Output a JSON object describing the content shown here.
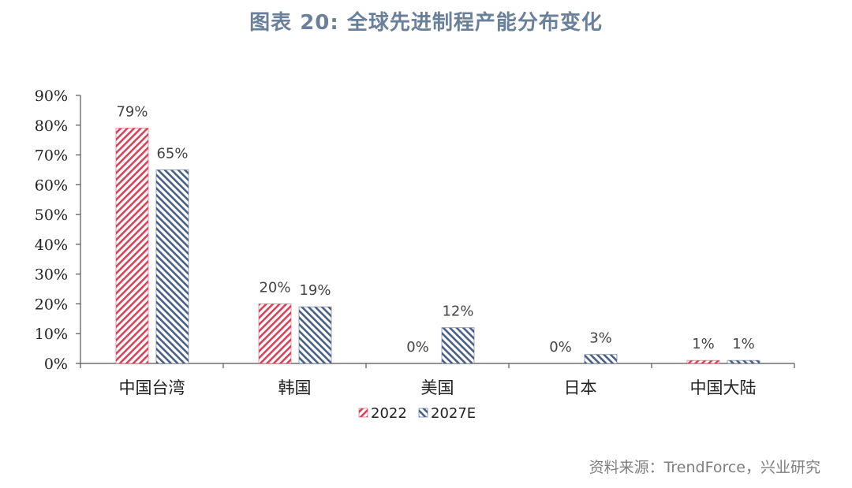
{
  "header": {
    "title": "图表 20: 全球先进制程产能分布变化"
  },
  "footer": {
    "source": "资料来源：TrendForce，兴业研究"
  },
  "colors": {
    "series_2022": "#d9435a",
    "series_2027E": "#4a5f85",
    "title": "#6a7f9a",
    "axis": "#555555"
  },
  "chart_data": {
    "type": "bar",
    "title": "图表 20: 全球先进制程产能分布变化",
    "xlabel": "",
    "ylabel": "",
    "categories": [
      "中国台湾",
      "韩国",
      "美国",
      "日本",
      "中国大陆"
    ],
    "series": [
      {
        "name": "2022",
        "values": [
          79,
          20,
          0,
          0,
          1
        ],
        "labels": [
          "79%",
          "20%",
          "0%",
          "0%",
          "1%"
        ],
        "pattern": "hatch-backslash",
        "color": "#d9435a"
      },
      {
        "name": "2027E",
        "values": [
          65,
          19,
          12,
          3,
          1
        ],
        "labels": [
          "65%",
          "19%",
          "12%",
          "3%",
          "1%"
        ],
        "pattern": "hatch-slash",
        "color": "#4a5f85"
      }
    ],
    "ylim": [
      0,
      90
    ],
    "yticks": [
      "0%",
      "10%",
      "20%",
      "30%",
      "40%",
      "50%",
      "60%",
      "70%",
      "80%",
      "90%"
    ],
    "grid": false,
    "legend_position": "bottom",
    "unit": "%"
  }
}
